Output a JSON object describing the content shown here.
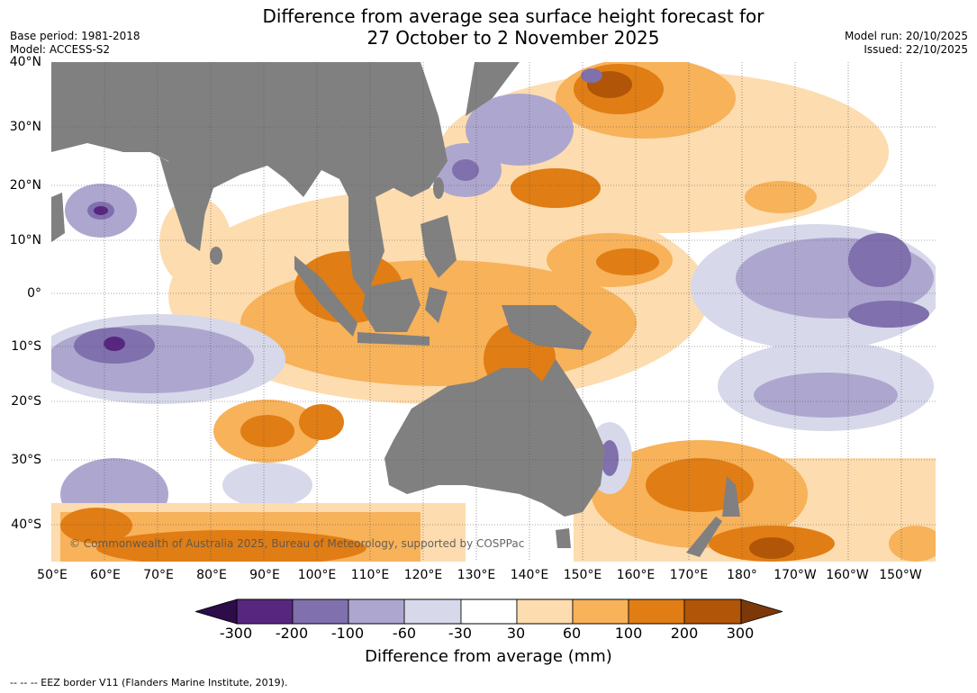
{
  "title_line1": "Difference from average sea surface height forecast for",
  "title_line2": "27 October to 2 November 2025",
  "meta_left": [
    "Base period: 1981-2018",
    "Model: ACCESS-S2"
  ],
  "meta_right": [
    "Model run: 20/10/2025",
    "Issued: 22/10/2025"
  ],
  "lat_labels": [
    "40°N",
    "30°N",
    "20°N",
    "10°N",
    "0°",
    "10°S",
    "20°S",
    "30°S",
    "40°S"
  ],
  "lon_labels": [
    "50°E",
    "60°E",
    "70°E",
    "80°E",
    "90°E",
    "100°E",
    "110°E",
    "120°E",
    "130°E",
    "140°E",
    "150°E",
    "160°E",
    "170°E",
    "180°",
    "170°W",
    "160°W",
    "150°W"
  ],
  "copyright": "© Commonwealth of Australia 2025, Bureau of Meteorology, supported by COSPPac",
  "colorbar": {
    "ticks": [
      "-300",
      "-200",
      "-100",
      "-60",
      "-30",
      "30",
      "60",
      "100",
      "200",
      "300"
    ],
    "colors": [
      "#2d0c4a",
      "#57277f",
      "#8070ad",
      "#ada7cf",
      "#d7d8ea",
      "#ffffff",
      "#fddcaf",
      "#f7b25a",
      "#e07d14",
      "#b15508",
      "#7d3808"
    ],
    "title": "Difference from average (mm)"
  },
  "land_color": "#808080",
  "footnote": "--  --  -- EEZ border V11 (Flanders Marine Institute, 2019)."
}
